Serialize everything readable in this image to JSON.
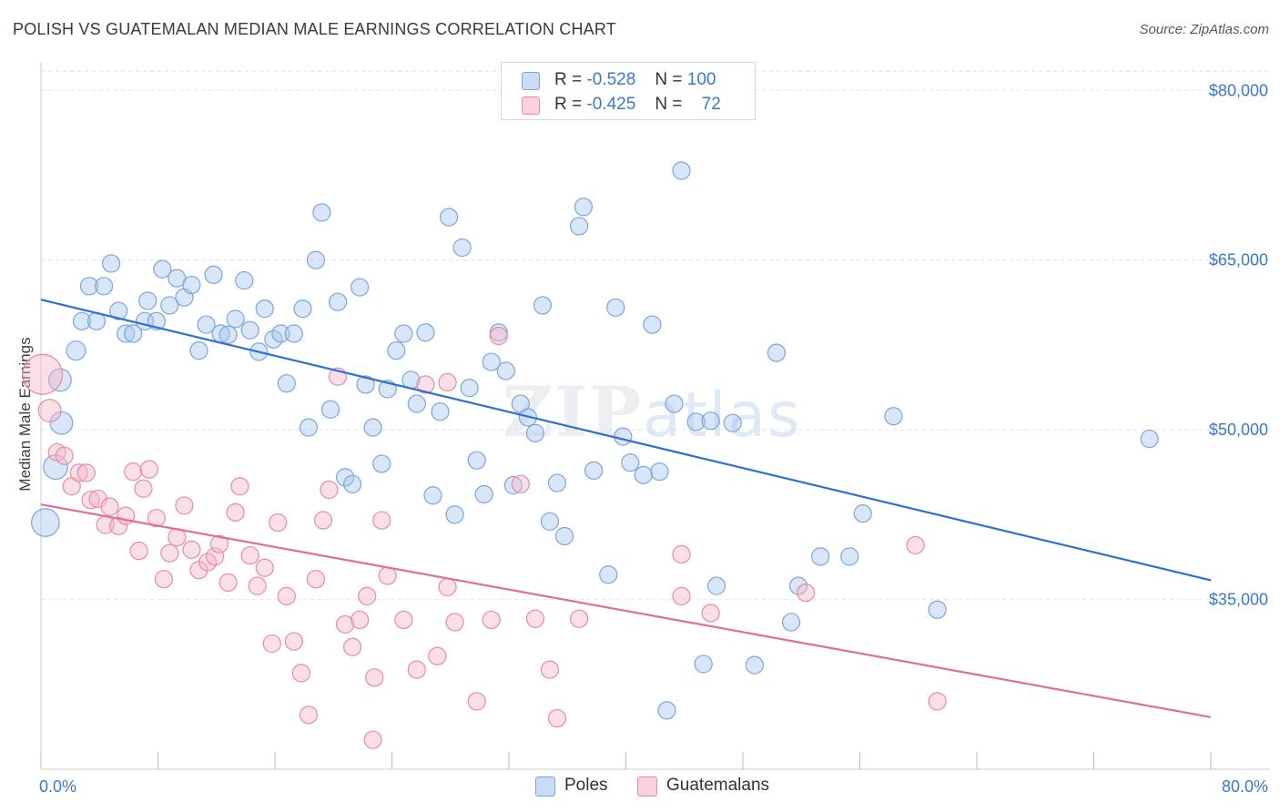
{
  "title": "POLISH VS GUATEMALAN MEDIAN MALE EARNINGS CORRELATION CHART",
  "source": "Source: ZipAtlas.com",
  "watermark": {
    "zip": "ZIP",
    "atlas": "atlas"
  },
  "legend_top": {
    "rows": [
      {
        "r_label": "R =",
        "r_value": "-0.528",
        "n_label": "N =",
        "n_value": "100",
        "color": "#a9c8ee"
      },
      {
        "r_label": "R =",
        "r_value": "-0.425",
        "n_label": "N =",
        "n_value": "72",
        "color": "#f5b7c9"
      }
    ]
  },
  "legend_bottom": [
    {
      "label": "Poles",
      "color": "#a9c8ee"
    },
    {
      "label": "Guatemalans",
      "color": "#f5b7c9"
    }
  ],
  "chart_data": {
    "type": "scatter",
    "title": "POLISH VS GUATEMALAN MEDIAN MALE EARNINGS CORRELATION CHART",
    "xlabel": "",
    "ylabel": "Median Male Earnings",
    "xlim": [
      0,
      80
    ],
    "ylim": [
      20000,
      83000
    ],
    "x_tick_labels": [
      "0.0%",
      "80.0%"
    ],
    "y_ticks": [
      35000,
      50000,
      65000,
      80000
    ],
    "y_tick_labels": [
      "$35,000",
      "$50,000",
      "$65,000",
      "$80,000"
    ],
    "grid": true,
    "legend_position": "top-center",
    "series": [
      {
        "name": "Poles",
        "color": "#a9c8ee",
        "stroke": "#7aa6dc",
        "trend": {
          "x": [
            0,
            80
          ],
          "y": [
            61500,
            36700
          ],
          "color": "#2f6fd1"
        },
        "points": [
          [
            0.3,
            41800,
            1.6
          ],
          [
            1.0,
            46700,
            1.4
          ],
          [
            1.3,
            54400,
            1.3
          ],
          [
            1.4,
            50600,
            1.3
          ],
          [
            2.4,
            57000,
            1.1
          ],
          [
            2.8,
            59600,
            1.0
          ],
          [
            3.3,
            62700,
            1.0
          ],
          [
            3.8,
            59600,
            1.0
          ],
          [
            4.3,
            62700,
            1.0
          ],
          [
            4.8,
            64700,
            1.0
          ],
          [
            5.3,
            60500,
            1.0
          ],
          [
            5.8,
            58500,
            1.0
          ],
          [
            6.3,
            58500,
            1.0
          ],
          [
            7.1,
            59600,
            1.0
          ],
          [
            7.3,
            61400,
            1.0
          ],
          [
            7.9,
            59600,
            1.0
          ],
          [
            8.3,
            64200,
            1.0
          ],
          [
            8.8,
            61000,
            1.0
          ],
          [
            9.3,
            63400,
            1.0
          ],
          [
            9.8,
            61700,
            1.0
          ],
          [
            10.3,
            62800,
            1.0
          ],
          [
            10.8,
            57000,
            1.0
          ],
          [
            11.3,
            59300,
            1.0
          ],
          [
            11.8,
            63700,
            1.0
          ],
          [
            12.3,
            58500,
            1.0
          ],
          [
            12.8,
            58400,
            1.0
          ],
          [
            13.3,
            59800,
            1.0
          ],
          [
            13.9,
            63200,
            1.0
          ],
          [
            14.3,
            58800,
            1.0
          ],
          [
            14.9,
            56900,
            1.0
          ],
          [
            15.3,
            60700,
            1.0
          ],
          [
            15.9,
            58000,
            1.0
          ],
          [
            16.4,
            58500,
            1.0
          ],
          [
            16.8,
            54100,
            1.0
          ],
          [
            17.3,
            58500,
            1.0
          ],
          [
            17.9,
            60700,
            1.0
          ],
          [
            18.3,
            50200,
            1.0
          ],
          [
            18.8,
            65000,
            1.0
          ],
          [
            19.2,
            69200,
            1.0
          ],
          [
            19.8,
            51800,
            1.0
          ],
          [
            20.3,
            61300,
            1.0
          ],
          [
            20.8,
            45800,
            1.0
          ],
          [
            21.3,
            45200,
            1.0
          ],
          [
            21.8,
            62600,
            1.0
          ],
          [
            22.2,
            54000,
            1.0
          ],
          [
            22.7,
            50200,
            1.0
          ],
          [
            23.3,
            47000,
            1.0
          ],
          [
            23.7,
            53600,
            1.0
          ],
          [
            24.3,
            57000,
            1.0
          ],
          [
            24.8,
            58500,
            1.0
          ],
          [
            25.3,
            54400,
            1.0
          ],
          [
            25.7,
            52300,
            1.0
          ],
          [
            26.3,
            58600,
            1.0
          ],
          [
            26.8,
            44200,
            1.0
          ],
          [
            27.3,
            51600,
            1.0
          ],
          [
            27.9,
            68800,
            1.0
          ],
          [
            28.3,
            42500,
            1.0
          ],
          [
            28.8,
            66100,
            1.0
          ],
          [
            29.3,
            53700,
            1.0
          ],
          [
            29.8,
            47300,
            1.0
          ],
          [
            30.3,
            44300,
            1.0
          ],
          [
            30.8,
            56000,
            1.0
          ],
          [
            31.3,
            58600,
            1.0
          ],
          [
            31.8,
            55200,
            1.0
          ],
          [
            32.3,
            45100,
            1.0
          ],
          [
            32.8,
            52300,
            1.0
          ],
          [
            33.3,
            51100,
            1.0
          ],
          [
            33.8,
            49700,
            1.0
          ],
          [
            34.3,
            61000,
            1.0
          ],
          [
            34.8,
            41900,
            1.0
          ],
          [
            35.3,
            45300,
            1.0
          ],
          [
            35.8,
            40600,
            1.0
          ],
          [
            36.8,
            68000,
            1.0
          ],
          [
            37.1,
            69700,
            1.0
          ],
          [
            37.8,
            46400,
            1.0
          ],
          [
            38.8,
            37200,
            1.0
          ],
          [
            39.3,
            60800,
            1.0
          ],
          [
            39.8,
            49400,
            1.0
          ],
          [
            40.3,
            47100,
            1.0
          ],
          [
            41.2,
            46000,
            1.0
          ],
          [
            41.8,
            59300,
            1.0
          ],
          [
            42.3,
            46300,
            1.0
          ],
          [
            42.8,
            25200,
            1.0
          ],
          [
            43.3,
            52300,
            1.0
          ],
          [
            43.8,
            72900,
            1.0
          ],
          [
            44.8,
            50700,
            1.0
          ],
          [
            45.3,
            29300,
            1.0
          ],
          [
            45.8,
            50800,
            1.0
          ],
          [
            46.2,
            36200,
            1.0
          ],
          [
            47.3,
            50600,
            1.0
          ],
          [
            48.8,
            29200,
            1.0
          ],
          [
            50.3,
            56800,
            1.0
          ],
          [
            51.3,
            33000,
            1.0
          ],
          [
            51.8,
            36200,
            1.0
          ],
          [
            53.3,
            38800,
            1.0
          ],
          [
            55.3,
            38800,
            1.0
          ],
          [
            56.2,
            42600,
            1.0
          ],
          [
            58.3,
            51200,
            1.0
          ],
          [
            61.3,
            34100,
            1.0
          ],
          [
            75.8,
            49200,
            1.0
          ]
        ]
      },
      {
        "name": "Guatemalans",
        "color": "#f5b7c9",
        "stroke": "#e88aa8",
        "trend": {
          "x": [
            0,
            80
          ],
          "y": [
            43400,
            24600
          ],
          "color": "#e06f97"
        },
        "points": [
          [
            0.1,
            54900,
            2.3
          ],
          [
            0.6,
            51700,
            1.3
          ],
          [
            1.1,
            48000,
            1.0
          ],
          [
            1.6,
            47700,
            1.0
          ],
          [
            2.1,
            45000,
            1.0
          ],
          [
            2.6,
            46200,
            1.0
          ],
          [
            3.1,
            46200,
            1.0
          ],
          [
            3.4,
            43800,
            1.0
          ],
          [
            3.9,
            43900,
            1.0
          ],
          [
            4.4,
            41600,
            1.0
          ],
          [
            4.7,
            43200,
            1.0
          ],
          [
            5.3,
            41500,
            1.0
          ],
          [
            5.8,
            42400,
            1.0
          ],
          [
            6.3,
            46300,
            1.0
          ],
          [
            6.7,
            39300,
            1.0
          ],
          [
            7.0,
            44800,
            1.0
          ],
          [
            7.4,
            46500,
            1.0
          ],
          [
            7.9,
            42200,
            1.0
          ],
          [
            8.4,
            36800,
            1.0
          ],
          [
            8.8,
            39100,
            1.0
          ],
          [
            9.3,
            40500,
            1.0
          ],
          [
            9.8,
            43300,
            1.0
          ],
          [
            10.3,
            39400,
            1.0
          ],
          [
            10.8,
            37600,
            1.0
          ],
          [
            11.4,
            38300,
            1.0
          ],
          [
            11.9,
            38800,
            1.0
          ],
          [
            12.2,
            39900,
            1.0
          ],
          [
            12.8,
            36500,
            1.0
          ],
          [
            13.3,
            42700,
            1.0
          ],
          [
            13.6,
            45000,
            1.0
          ],
          [
            14.3,
            38900,
            1.0
          ],
          [
            14.8,
            36200,
            1.0
          ],
          [
            15.3,
            37800,
            1.0
          ],
          [
            15.8,
            31100,
            1.0
          ],
          [
            16.2,
            41800,
            1.0
          ],
          [
            16.8,
            35300,
            1.0
          ],
          [
            17.3,
            31300,
            1.0
          ],
          [
            17.8,
            28500,
            1.0
          ],
          [
            18.3,
            24800,
            1.0
          ],
          [
            18.8,
            36800,
            1.0
          ],
          [
            19.3,
            42000,
            1.0
          ],
          [
            19.7,
            44700,
            1.0
          ],
          [
            20.3,
            54700,
            1.0
          ],
          [
            20.8,
            32800,
            1.0
          ],
          [
            21.3,
            30800,
            1.0
          ],
          [
            21.8,
            33200,
            1.0
          ],
          [
            22.3,
            35300,
            1.0
          ],
          [
            22.7,
            22600,
            1.0
          ],
          [
            22.8,
            28100,
            1.0
          ],
          [
            23.3,
            42000,
            1.0
          ],
          [
            23.7,
            37100,
            1.0
          ],
          [
            24.8,
            33200,
            1.0
          ],
          [
            25.7,
            28800,
            1.0
          ],
          [
            26.3,
            54000,
            1.0
          ],
          [
            27.1,
            30000,
            1.0
          ],
          [
            27.8,
            36100,
            1.0
          ],
          [
            28.3,
            33000,
            1.0
          ],
          [
            29.8,
            26000,
            1.0
          ],
          [
            30.8,
            33200,
            1.0
          ],
          [
            31.3,
            58300,
            1.0
          ],
          [
            32.8,
            45200,
            1.0
          ],
          [
            33.8,
            33300,
            1.0
          ],
          [
            34.8,
            28800,
            1.0
          ],
          [
            35.3,
            24500,
            1.0
          ],
          [
            36.8,
            33300,
            1.0
          ],
          [
            43.8,
            35300,
            1.0
          ],
          [
            43.8,
            39000,
            1.0
          ],
          [
            45.8,
            33800,
            1.0
          ],
          [
            52.3,
            35600,
            1.0
          ],
          [
            59.8,
            39800,
            1.0
          ],
          [
            61.3,
            26000,
            1.0
          ],
          [
            27.8,
            54200,
            1.0
          ]
        ]
      }
    ]
  }
}
